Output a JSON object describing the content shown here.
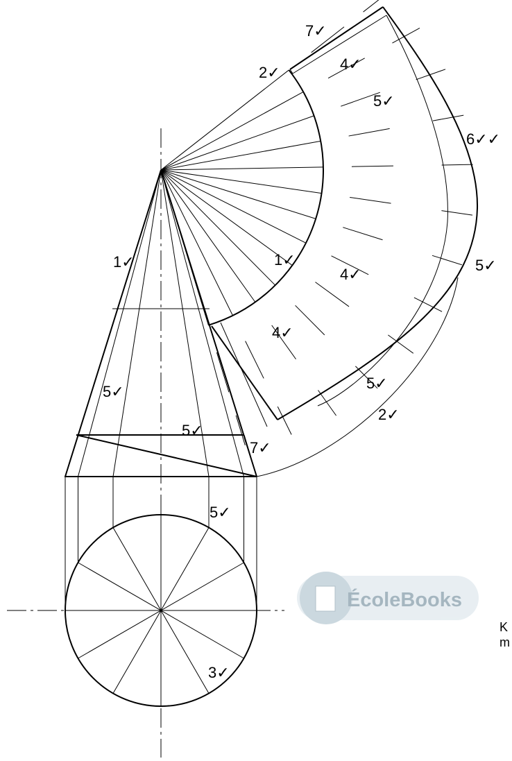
{
  "labels": [
    "7✓",
    "2✓",
    "4✓",
    "5✓",
    "6✓✓",
    "1✓",
    "1✓",
    "4✓",
    "5✓",
    "4✓",
    "5✓",
    "5✓",
    "5✓",
    "2✓",
    "7✓",
    "5✓",
    "3✓"
  ],
  "watermark": "ÉcoleBooks",
  "side_text": [
    "K",
    "m"
  ]
}
